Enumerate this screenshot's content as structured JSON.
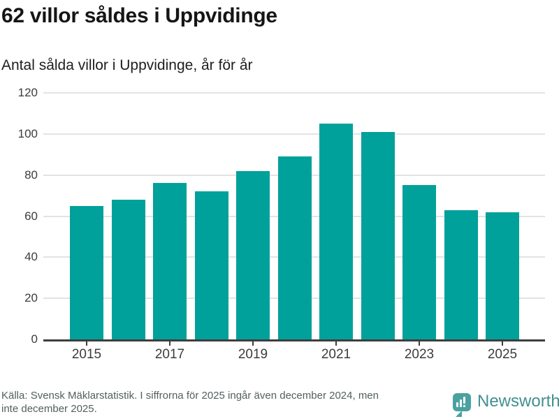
{
  "header": {
    "title": "62 villor såldes i Uppvidinge",
    "subtitle": "Antal sålda villor i Uppvidinge, år för år"
  },
  "chart_data": {
    "type": "bar",
    "title": "62 villor såldes i Uppvidinge",
    "subtitle": "Antal sålda villor i Uppvidinge, år för år",
    "categories": [
      "2015",
      "2016",
      "2017",
      "2018",
      "2019",
      "2020",
      "2021",
      "2022",
      "2023",
      "2024",
      "2025"
    ],
    "values": [
      65,
      68,
      76,
      72,
      82,
      89,
      105,
      101,
      75,
      63,
      62
    ],
    "xlabel": "",
    "ylabel": "",
    "ylim": [
      0,
      120
    ],
    "yticks": [
      0,
      20,
      40,
      60,
      80,
      100,
      120
    ],
    "xtick_labels": [
      "2015",
      "2017",
      "2019",
      "2021",
      "2023",
      "2025"
    ],
    "xtick_indices": [
      0,
      2,
      4,
      6,
      8,
      10
    ],
    "grid": true,
    "legend_position": "none",
    "bar_color": "#00a19a",
    "gridline_color": "#e3e3e3",
    "axis_color": "#3e3e3e"
  },
  "footer": {
    "lines": [
      "Källa: Svensk Mäklarstatistik. I siffrorna för 2025 ingår även december 2024, men",
      "inte december 2025."
    ]
  },
  "logo": {
    "text": "Newsworthy",
    "text_color": "#43908f",
    "icon_color": "#4ba1a0",
    "icon": "newsworthy-speech-bubble-barchart-icon"
  }
}
